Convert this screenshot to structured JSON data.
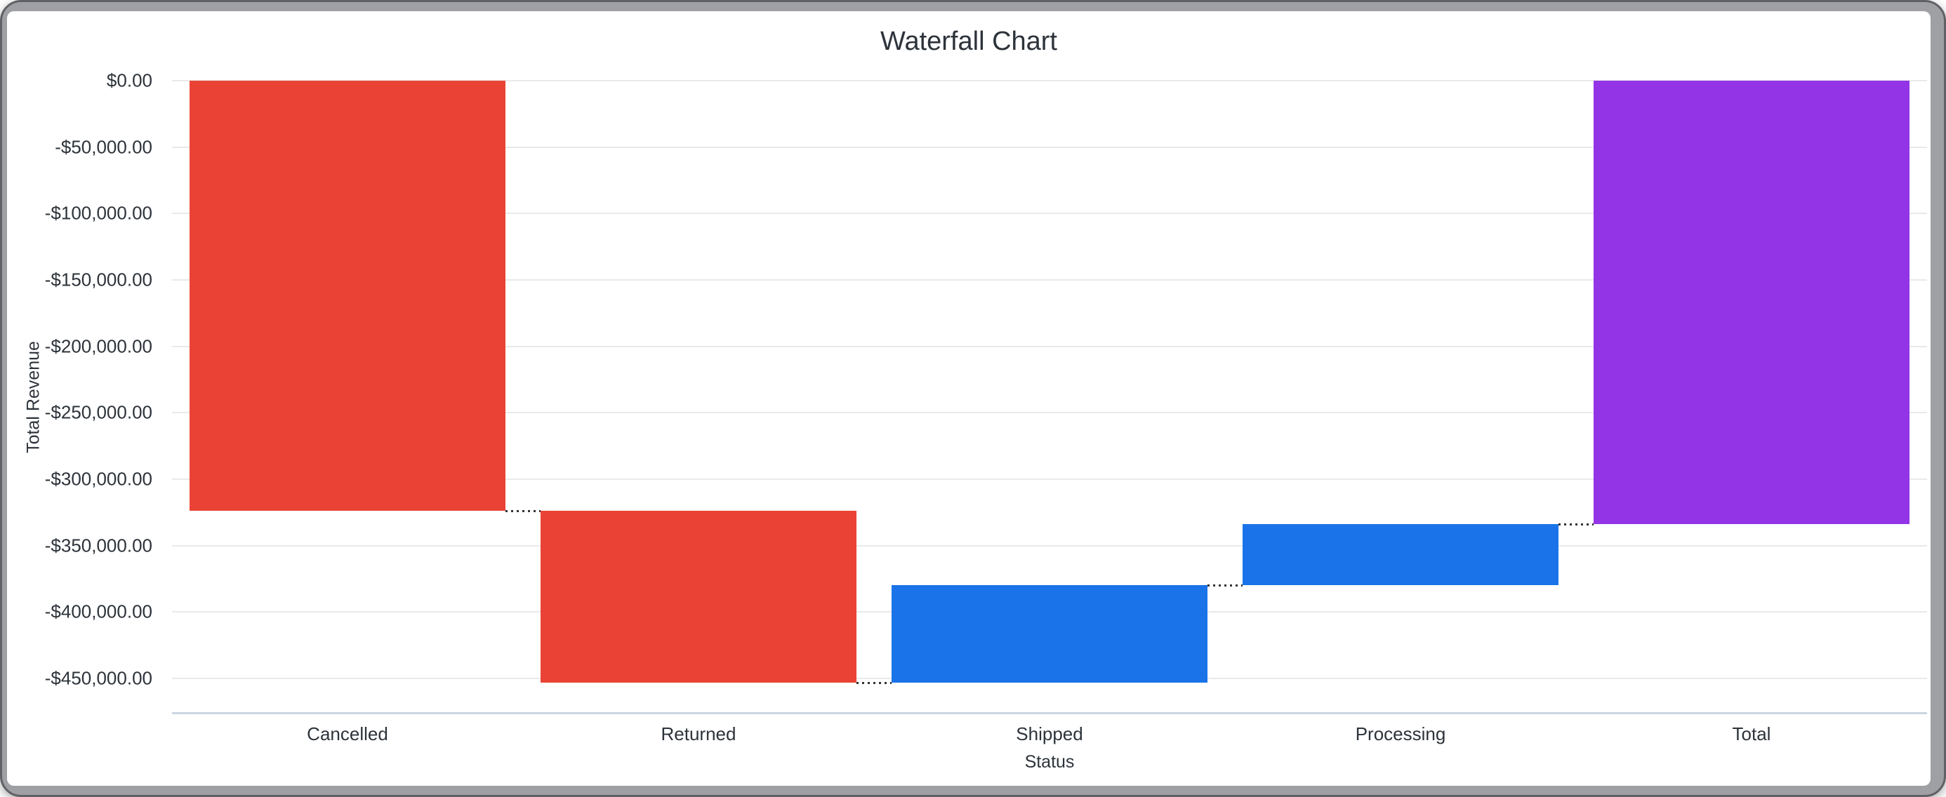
{
  "window": {
    "frame_color": "#9fa0a4",
    "frame_edge_color": "#606166",
    "card_background": "#ffffff"
  },
  "chart_data": {
    "type": "bar",
    "subtype": "waterfall",
    "title": "Waterfall Chart",
    "xlabel": "Status",
    "ylabel": "Total Revenue",
    "categories": [
      "Cancelled",
      "Returned",
      "Shipped",
      "Processing",
      "Total"
    ],
    "values": [
      -324000,
      -129500,
      73500,
      46000,
      -334000
    ],
    "bar_roles": [
      "decrease",
      "decrease",
      "increase",
      "increase",
      "total"
    ],
    "cumulative_end": [
      -324000,
      -453500,
      -380000,
      -334000,
      -334000
    ],
    "ylim": [
      -476000,
      0
    ],
    "y_ticks": [
      {
        "label": "$0.00",
        "value": 0
      },
      {
        "label": "-$50,000.00",
        "value": -50000
      },
      {
        "label": "-$100,000.00",
        "value": -100000
      },
      {
        "label": "-$150,000.00",
        "value": -150000
      },
      {
        "label": "-$200,000.00",
        "value": -200000
      },
      {
        "label": "-$250,000.00",
        "value": -250000
      },
      {
        "label": "-$300,000.00",
        "value": -300000
      },
      {
        "label": "-$350,000.00",
        "value": -350000
      },
      {
        "label": "-$400,000.00",
        "value": -400000
      },
      {
        "label": "-$450,000.00",
        "value": -450000
      }
    ],
    "colors": {
      "decrease": "#EA4335",
      "increase": "#1A73E8",
      "total": "#9334E6"
    },
    "gridline_color": "#e9e9e9",
    "axis_line_color": "#ccd5e2",
    "connector_color": "#333333",
    "text_color": "#2d333a",
    "grid": true,
    "legend": "none",
    "connector_style": "dotted"
  }
}
